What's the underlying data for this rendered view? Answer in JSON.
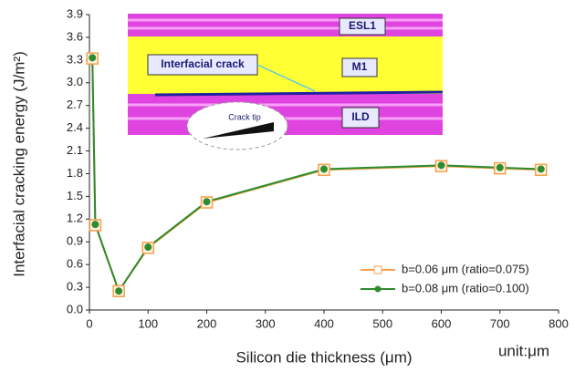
{
  "chart_data": {
    "type": "line",
    "x_label": "Silicon die thickness (μm)",
    "y_label": "Interfacial cracking energy (J/m²)",
    "unit_note": "unit:μm",
    "inset_labels": [
      "ESL1",
      "M1",
      "Interfacial crack",
      "ILD",
      "Crack tip"
    ],
    "x": [
      5,
      10,
      50,
      100,
      200,
      400,
      600,
      700,
      770
    ],
    "series": [
      {
        "name": "b=0.06 μm (ratio=0.075)",
        "color": "#f5a04a",
        "marker": "square",
        "values": [
          3.32,
          1.12,
          0.25,
          0.82,
          1.42,
          1.85,
          1.9,
          1.87,
          1.85
        ]
      },
      {
        "name": "b=0.08 μm (ratio=0.100)",
        "color": "#2e8b2e",
        "marker": "circle",
        "values": [
          3.33,
          1.13,
          0.25,
          0.83,
          1.43,
          1.86,
          1.91,
          1.88,
          1.86
        ]
      }
    ],
    "xlim": [
      0,
      800
    ],
    "xticks": [
      0,
      100,
      200,
      300,
      400,
      500,
      600,
      700,
      800
    ],
    "ylim": [
      0,
      3.9
    ],
    "yticks": [
      {
        "value": 0,
        "label": "0.0"
      },
      0.3,
      0.6,
      0.9,
      1.2,
      1.5,
      1.8,
      2.1,
      2.4,
      2.7,
      {
        "value": 3,
        "label": "3.0"
      },
      3.3,
      3.6,
      3.9
    ],
    "legend": "lower right"
  }
}
